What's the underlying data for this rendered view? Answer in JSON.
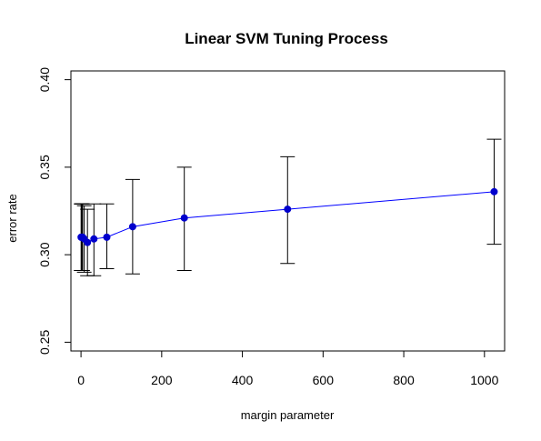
{
  "chart_data": {
    "type": "line",
    "title": "Linear SVM Tuning Process",
    "xlabel": "margin parameter",
    "ylabel": "error rate",
    "xlim": [
      -25,
      1050
    ],
    "ylim": [
      0.245,
      0.405
    ],
    "x_ticks": [
      0,
      200,
      400,
      600,
      800,
      1000
    ],
    "y_ticks": [
      0.25,
      0.3,
      0.35,
      0.4
    ],
    "x_tick_labels": [
      "0",
      "200",
      "400",
      "600",
      "800",
      "1000"
    ],
    "y_tick_labels": [
      "0.25",
      "0.30",
      "0.35",
      "0.40"
    ],
    "grid": false,
    "legend": "none",
    "colors": {
      "line": "#0000ff",
      "point": "#0000cd",
      "errorbar": "#000000"
    },
    "series": [
      {
        "x": [
          0.25,
          1,
          2,
          4,
          8,
          16,
          32,
          64,
          128,
          256,
          512,
          1024
        ],
        "y": [
          0.31,
          0.31,
          0.31,
          0.31,
          0.309,
          0.307,
          0.309,
          0.31,
          0.316,
          0.321,
          0.326,
          0.336
        ],
        "ymin": [
          0.291,
          0.291,
          0.291,
          0.291,
          0.29,
          0.288,
          0.288,
          0.292,
          0.289,
          0.291,
          0.295,
          0.306
        ],
        "ymax": [
          0.329,
          0.329,
          0.329,
          0.329,
          0.328,
          0.326,
          0.329,
          0.329,
          0.343,
          0.35,
          0.356,
          0.366
        ]
      }
    ]
  }
}
